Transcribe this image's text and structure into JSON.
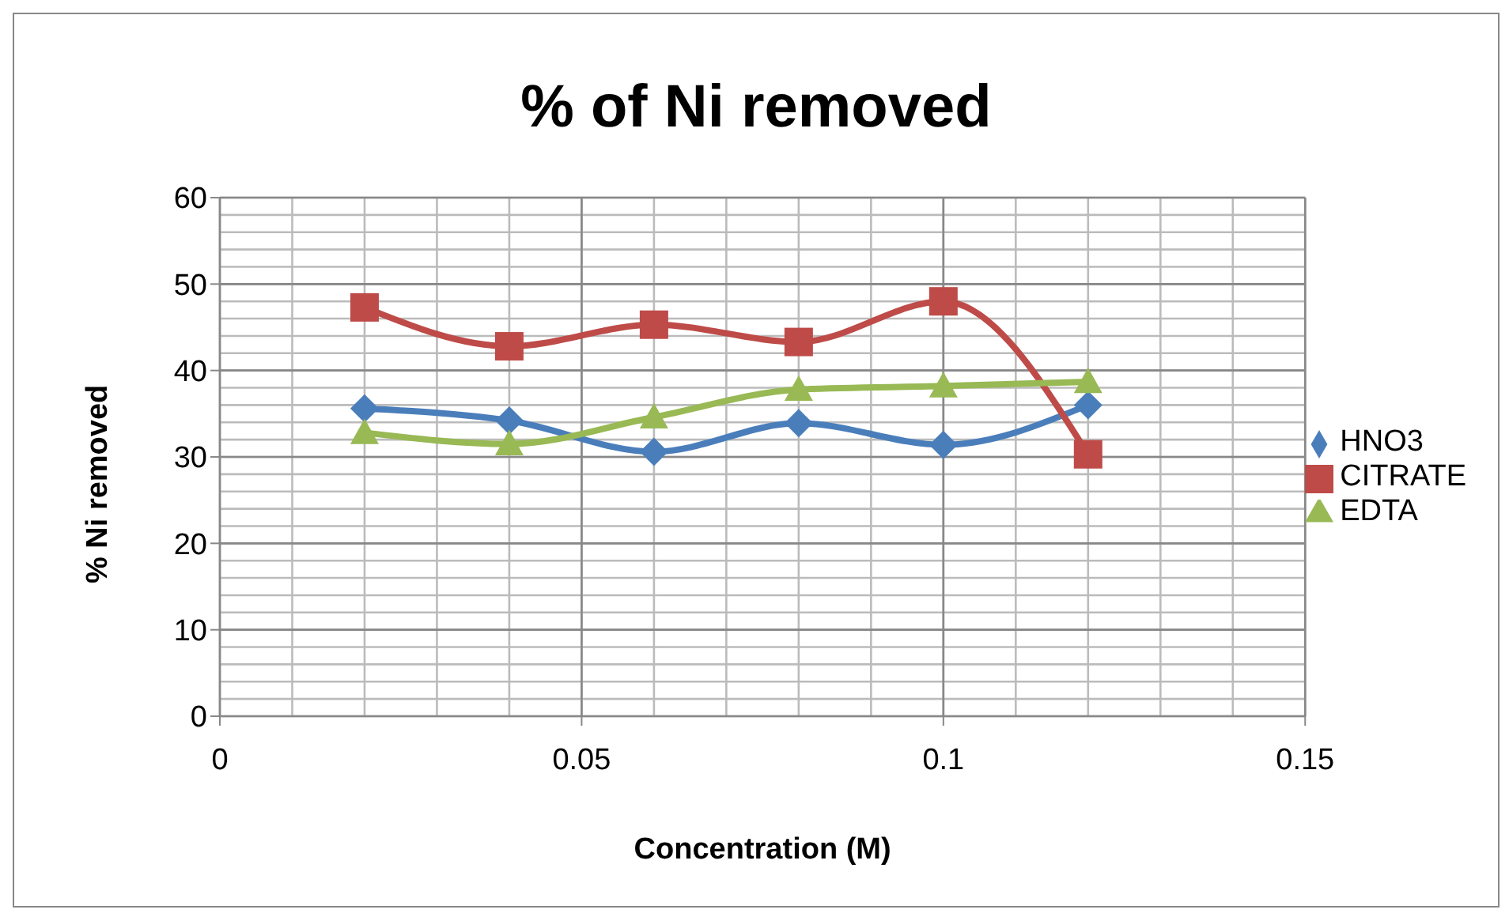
{
  "chart_data": {
    "type": "line",
    "title": "% of Ni removed",
    "xlabel": "Concentration (M)",
    "ylabel": "% Ni removed",
    "x": [
      0.02,
      0.04,
      0.06,
      0.08,
      0.1,
      0.12
    ],
    "series": [
      {
        "name": "HNO3",
        "color": "#4a7ebb",
        "marker": "diamond",
        "values": [
          35.6,
          34.2,
          30.6,
          33.9,
          31.4,
          36.0
        ]
      },
      {
        "name": "CITRATE",
        "color": "#be4b48",
        "marker": "square",
        "values": [
          47.3,
          42.8,
          45.3,
          43.3,
          48.0,
          30.3
        ]
      },
      {
        "name": "EDTA",
        "color": "#98b954",
        "marker": "triangle",
        "values": [
          32.8,
          31.5,
          34.6,
          37.8,
          38.2,
          38.7
        ]
      }
    ],
    "xlim": [
      0,
      0.15
    ],
    "xticks": [
      0,
      0.05,
      0.1,
      0.15
    ],
    "ylim": [
      0,
      60
    ],
    "yticks": [
      0,
      10,
      20,
      30,
      40,
      50,
      60
    ],
    "grid": true,
    "legend": "right",
    "line_style": "solid"
  }
}
